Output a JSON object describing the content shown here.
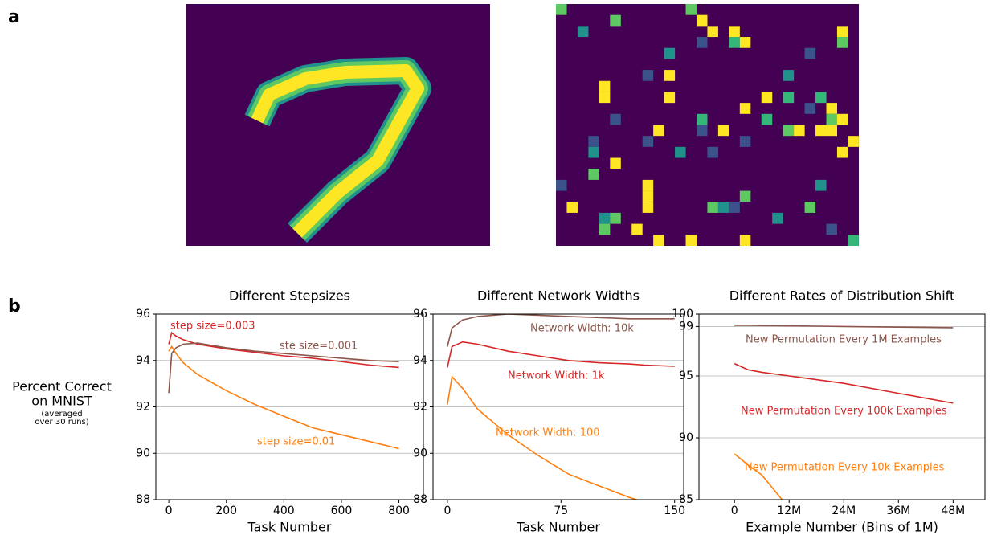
{
  "panel_labels": [
    "a",
    "b"
  ],
  "y_label": [
    "Percent Correct",
    "on MNIST"
  ],
  "y_note": [
    "(averaged",
    "over 30 runs)"
  ],
  "chart_data": [
    {
      "type": "line",
      "title": "Different Stepsizes",
      "x_label": "Task Number",
      "x": [
        0,
        10,
        25,
        50,
        100,
        200,
        300,
        400,
        500,
        600,
        700,
        800
      ],
      "series": [
        {
          "name": "step size=0.003",
          "color": "#d62728",
          "values": [
            94.7,
            95.2,
            95.05,
            94.9,
            94.7,
            94.5,
            94.35,
            94.2,
            94.1,
            93.95,
            93.8,
            93.7
          ]
        },
        {
          "name": "ste size=0.001",
          "color": "#8c564b",
          "values": [
            92.6,
            94.3,
            94.55,
            94.7,
            94.75,
            94.55,
            94.4,
            94.3,
            94.2,
            94.1,
            94.0,
            93.95
          ]
        },
        {
          "name": "step size=0.01",
          "color": "#ff7f0e",
          "values": [
            94.4,
            94.6,
            94.3,
            93.9,
            93.4,
            92.7,
            92.1,
            91.6,
            91.1,
            90.8,
            90.5,
            90.2
          ]
        }
      ],
      "xlim": [
        -45,
        885
      ],
      "xticks": [
        0,
        200,
        400,
        600,
        800
      ],
      "ylim": [
        88,
        96
      ],
      "yticks": [
        88,
        90,
        92,
        94,
        96
      ],
      "grid": true
    },
    {
      "type": "line",
      "title": "Different Network Widths",
      "x_label": "Task Number",
      "x": [
        0,
        3,
        10,
        20,
        40,
        60,
        80,
        100,
        120,
        130,
        150
      ],
      "series": [
        {
          "name": "Network Width: 10k",
          "color": "#8c564b",
          "values": [
            94.6,
            95.4,
            95.75,
            95.9,
            96.0,
            95.95,
            95.9,
            95.85,
            95.8,
            95.8,
            95.8
          ]
        },
        {
          "name": "Network Width: 1k",
          "color": "#d62728",
          "values": [
            93.7,
            94.6,
            94.8,
            94.7,
            94.4,
            94.2,
            94.0,
            93.9,
            93.85,
            93.8,
            93.75
          ]
        },
        {
          "name": "Network Width: 100",
          "color": "#ff7f0e",
          "values": [
            92.1,
            93.3,
            92.8,
            91.9,
            90.8,
            89.9,
            89.1,
            88.6,
            88.1,
            87.9,
            null
          ]
        }
      ],
      "xlim": [
        -9.5,
        156
      ],
      "xticks": [
        0,
        75,
        150
      ],
      "ylim": [
        88,
        96
      ],
      "yticks": [
        88,
        90,
        92,
        94,
        96
      ],
      "grid": true
    },
    {
      "type": "line",
      "title": "Different Rates of Distribution Shift",
      "x_label": "Example Number (Bins of 1M)",
      "x": [
        0,
        3000000,
        6000000,
        12000000,
        24000000,
        36000000,
        48000000
      ],
      "series": [
        {
          "name": "New Permutation Every 1M Examples",
          "color": "#8c564b",
          "values": [
            99.1,
            99.1,
            99.08,
            99.05,
            99.0,
            98.95,
            98.9
          ]
        },
        {
          "name": "New Permutation Every 100k Examples",
          "color": "#d62728",
          "values": [
            96.0,
            95.5,
            95.3,
            95.0,
            94.4,
            93.6,
            92.8
          ]
        },
        {
          "name": "New Permutation Every 10k Examples",
          "color": "#ff7f0e",
          "values": [
            88.7,
            87.8,
            87.0,
            84.3,
            null,
            null,
            null
          ]
        }
      ],
      "xlim": [
        -7800000,
        55000000
      ],
      "xticks": [
        0,
        {
          "value": 12000000,
          "label": "12M"
        },
        {
          "value": 24000000,
          "label": "24M"
        },
        {
          "value": 36000000,
          "label": "36M"
        },
        {
          "value": 48000000,
          "label": "48M"
        }
      ],
      "ylim": [
        85,
        100
      ],
      "yticks": [
        85,
        90,
        95,
        99,
        100
      ],
      "grid": true
    }
  ]
}
